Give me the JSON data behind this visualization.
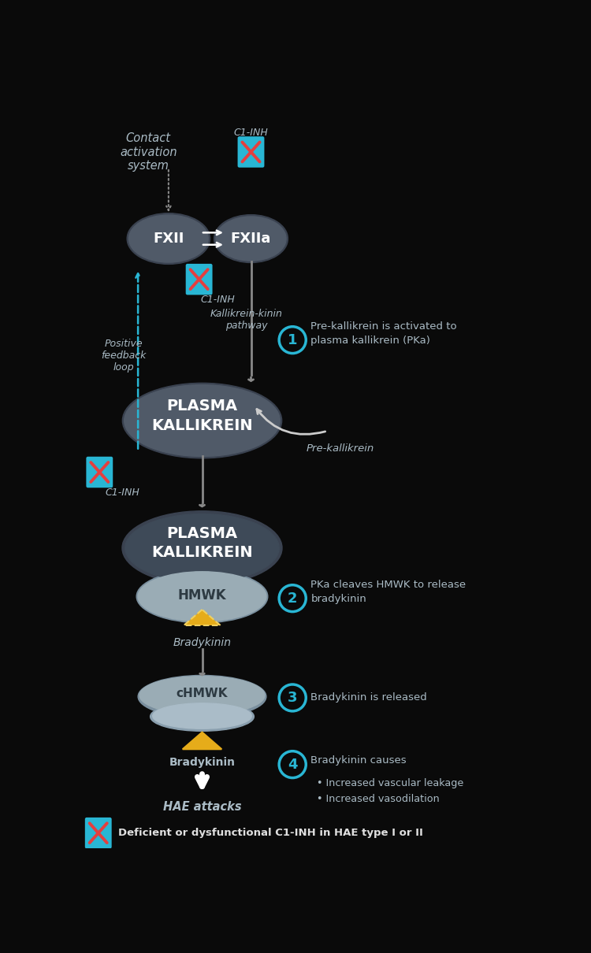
{
  "bg_color": "#0a0a0a",
  "ellipse_dark": "#505a68",
  "ellipse_dark2": "#3a4250",
  "ellipse_light": "#9aacb5",
  "text_white": "#ffffff",
  "text_gray": "#aabbc5",
  "text_dark_ellipse": "#2d3a42",
  "cyan": "#29b6d4",
  "red": "#e53e3e",
  "gold": "#e6ac1a",
  "gold_light": "#f0d060",
  "arrow_gray": "#888888",
  "arrow_white": "#dddddd",
  "title_text": "Contact\nactivation\nsystem",
  "fxii_label": "FXII",
  "fxiia_label": "FXIIa",
  "plasma_kallikrein": "PLASMA\nKALLIKREIN",
  "hmwk_label": "HMWK",
  "chmwk_label": "cHMWK",
  "bradykinin_label": "Bradykinin",
  "hae_label": "HAE attacks",
  "pre_kallikrein": "Pre-kallikrein",
  "c1inh_label": "C1-INH",
  "positive_feedback": "Positive\nfeedback\nloop",
  "kallikrein_kinin": "Kallikrein-kinin\npathway",
  "step1": "Pre-kallikrein is activated to\nplasma kallikrein (PKa)",
  "step2": "PKa cleaves HMWK to release\nbradykinin",
  "step3": "Bradykinin is released",
  "step4": "Bradykinin causes",
  "step4_bullet1": "Increased vascular leakage",
  "step4_bullet2": "Increased vasodilation",
  "legend_text": "Deficient or dysfunctional C1-INH in HAE type I or II",
  "xlim": [
    0,
    7.5
  ],
  "ylim": [
    0,
    12.1
  ]
}
